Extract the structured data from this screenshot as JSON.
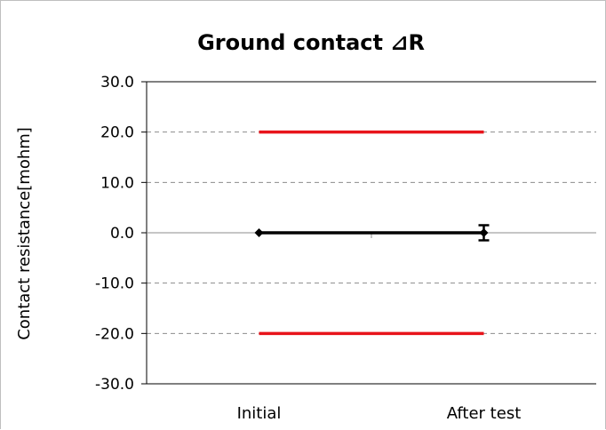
{
  "chart_data": {
    "type": "line",
    "title": "Ground contact ⊿R",
    "ylabel": "Contact resistance[mohm]",
    "xlabel": "",
    "categories": [
      "Initial",
      "After test"
    ],
    "ylim": [
      -30,
      30
    ],
    "y_ticks": [
      "30.0",
      "20.0",
      "10.0",
      "0.0",
      "-10.0",
      "-20.0",
      "-30.0"
    ],
    "grid": true,
    "legend": "none",
    "series": [
      {
        "values": [
          20.0,
          20.0
        ],
        "color": "#e8141b",
        "marker": "none"
      },
      {
        "values": [
          0.0,
          0.0
        ],
        "color": "#000000",
        "marker": "diamond",
        "error_bars": [
          null,
          {
            "low": -1.5,
            "high": 1.5
          }
        ]
      },
      {
        "values": [
          -20.0,
          -20.0
        ],
        "color": "#e8141b",
        "marker": "none"
      }
    ]
  }
}
